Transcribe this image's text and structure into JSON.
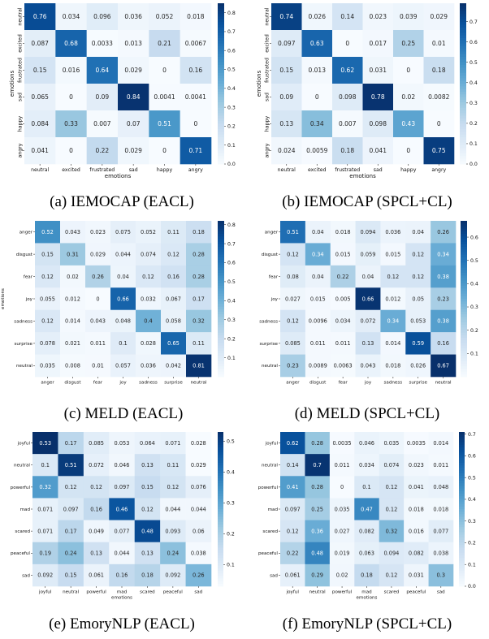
{
  "chart_data": [
    {
      "type": "heatmap",
      "caption": "(a) IEMOCAP (EACL)",
      "xlabel": "emotions",
      "ylabel": "emotions",
      "x_tick_labels": [
        "neutral",
        "excited",
        "frustrated",
        "sad",
        "happy",
        "angry"
      ],
      "y_tick_labels": [
        "neutral",
        "excited",
        "frustrated",
        "sad",
        "happy",
        "angry"
      ],
      "values": [
        [
          "0.76",
          "0.034",
          "0.096",
          "0.036",
          "0.052",
          "0.018"
        ],
        [
          "0.087",
          "0.68",
          "0.0033",
          "0.013",
          "0.21",
          "0.0067"
        ],
        [
          "0.15",
          "0.016",
          "0.64",
          "0.029",
          "0",
          "0.16"
        ],
        [
          "0.065",
          "0",
          "0.09",
          "0.84",
          "0.0041",
          "0.0041"
        ],
        [
          "0.084",
          "0.33",
          "0.007",
          "0.07",
          "0.51",
          "0"
        ],
        [
          "0.041",
          "0",
          "0.22",
          "0.029",
          "0",
          "0.71"
        ]
      ],
      "colorbar": {
        "range": [
          0,
          0.85
        ],
        "ticks": [
          "0.0",
          "0.1",
          "0.2",
          "0.3",
          "0.4",
          "0.5",
          "0.6",
          "0.7",
          "0.8"
        ]
      }
    },
    {
      "type": "heatmap",
      "caption": "(b) IEMOCAP (SPCL+CL)",
      "xlabel": "emotions",
      "ylabel": "emotions",
      "x_tick_labels": [
        "neutral",
        "excited",
        "frustrated",
        "sad",
        "happy",
        "angry"
      ],
      "y_tick_labels": [
        "neutral",
        "excited",
        "frustrated",
        "sad",
        "happy",
        "angry"
      ],
      "values": [
        [
          "0.74",
          "0.026",
          "0.14",
          "0.023",
          "0.039",
          "0.029"
        ],
        [
          "0.097",
          "0.63",
          "0",
          "0.017",
          "0.25",
          "0.01"
        ],
        [
          "0.15",
          "0.013",
          "0.62",
          "0.031",
          "0",
          "0.18"
        ],
        [
          "0.09",
          "0",
          "0.098",
          "0.78",
          "0.02",
          "0.0082"
        ],
        [
          "0.13",
          "0.34",
          "0.007",
          "0.098",
          "0.43",
          "0"
        ],
        [
          "0.024",
          "0.0059",
          "0.18",
          "0.041",
          "0",
          "0.75"
        ]
      ],
      "colorbar": {
        "range": [
          0,
          0.79
        ],
        "ticks": [
          "0.0",
          "0.1",
          "0.2",
          "0.3",
          "0.4",
          "0.5",
          "0.6",
          "0.7"
        ]
      }
    },
    {
      "type": "heatmap",
      "caption": "(c) MELD (EACL)",
      "xlabel": "",
      "ylabel": "emotions",
      "x_tick_labels": [
        "anger",
        "disgust",
        "fear",
        "joy",
        "sadness",
        "surprise",
        "neutral"
      ],
      "y_tick_labels": [
        "anger",
        "disgust",
        "fear",
        "joy",
        "sadness",
        "surprise",
        "neutral"
      ],
      "values": [
        [
          "0.52",
          "0.043",
          "0.023",
          "0.075",
          "0.052",
          "0.11",
          "0.18"
        ],
        [
          "0.15",
          "0.31",
          "0.029",
          "0.044",
          "0.074",
          "0.12",
          "0.28"
        ],
        [
          "0.12",
          "0.02",
          "0.26",
          "0.04",
          "0.12",
          "0.16",
          "0.28"
        ],
        [
          "0.055",
          "0.012",
          "0",
          "0.66",
          "0.032",
          "0.067",
          "0.17"
        ],
        [
          "0.12",
          "0.014",
          "0.043",
          "0.048",
          "0.4",
          "0.058",
          "0.32"
        ],
        [
          "0.078",
          "0.021",
          "0.011",
          "0.1",
          "0.028",
          "0.65",
          "0.11"
        ],
        [
          "0.035",
          "0.008",
          "0.01",
          "0.057",
          "0.036",
          "0.042",
          "0.81"
        ]
      ],
      "colorbar": {
        "range": [
          0,
          0.82
        ],
        "ticks": [
          "0.1",
          "0.2",
          "0.3",
          "0.4",
          "0.5",
          "0.6",
          "0.7",
          "0.8"
        ]
      }
    },
    {
      "type": "heatmap",
      "caption": "(d) MELD (SPCL+CL)",
      "xlabel": "",
      "ylabel": "",
      "x_tick_labels": [
        "anger",
        "disgust",
        "fear",
        "joy",
        "sadness",
        "surprise",
        "neutral"
      ],
      "y_tick_labels": [
        "anger",
        "disgust",
        "fear",
        "joy",
        "sadness",
        "surprise",
        "neutral"
      ],
      "values": [
        [
          "0.51",
          "0.04",
          "0.018",
          "0.094",
          "0.036",
          "0.04",
          "0.26"
        ],
        [
          "0.12",
          "0.34",
          "0.015",
          "0.059",
          "0.015",
          "0.12",
          "0.34"
        ],
        [
          "0.08",
          "0.04",
          "0.22",
          "0.04",
          "0.12",
          "0.12",
          "0.38"
        ],
        [
          "0.027",
          "0.015",
          "0.005",
          "0.66",
          "0.012",
          "0.05",
          "0.23"
        ],
        [
          "0.12",
          "0.0096",
          "0.034",
          "0.072",
          "0.34",
          "0.053",
          "0.38"
        ],
        [
          "0.085",
          "0.011",
          "0.011",
          "0.13",
          "0.014",
          "0.59",
          "0.16"
        ],
        [
          "0.23",
          "0.0089",
          "0.0063",
          "0.043",
          "0.018",
          "0.026",
          "0.67"
        ]
      ],
      "colorbar": {
        "range": [
          0,
          0.67
        ],
        "ticks": [
          "0.1",
          "0.2",
          "0.3",
          "0.4",
          "0.5",
          "0.6"
        ]
      }
    },
    {
      "type": "heatmap",
      "caption": "(e) EmoryNLP (EACL)",
      "xlabel": "emotions",
      "ylabel": "",
      "x_tick_labels": [
        "joyful",
        "neutral",
        "powerful",
        "mad",
        "scared",
        "peaceful",
        "sad"
      ],
      "y_tick_labels": [
        "joyful",
        "neutral",
        "powerful",
        "mad",
        "scared",
        "peaceful",
        "sad"
      ],
      "values": [
        [
          "0.53",
          "0.17",
          "0.085",
          "0.053",
          "0.064",
          "0.071",
          "0.028"
        ],
        [
          "0.1",
          "0.51",
          "0.072",
          "0.046",
          "0.13",
          "0.11",
          "0.029"
        ],
        [
          "0.32",
          "0.12",
          "0.12",
          "0.097",
          "0.15",
          "0.12",
          "0.076"
        ],
        [
          "0.071",
          "0.097",
          "0.16",
          "0.46",
          "0.12",
          "0.044",
          "0.044"
        ],
        [
          "0.071",
          "0.17",
          "0.049",
          "0.077",
          "0.48",
          "0.093",
          "0.06"
        ],
        [
          "0.19",
          "0.24",
          "0.13",
          "0.044",
          "0.13",
          "0.24",
          "0.038"
        ],
        [
          "0.092",
          "0.15",
          "0.061",
          "0.16",
          "0.18",
          "0.092",
          "0.26"
        ]
      ],
      "colorbar": {
        "range": [
          0.03,
          0.53
        ],
        "ticks": [
          "0.1",
          "0.2",
          "0.3",
          "0.4",
          "0.5"
        ]
      }
    },
    {
      "type": "heatmap",
      "caption": "(f) EmoryNLP (SPCL+CL)",
      "xlabel": "emotions",
      "ylabel": "",
      "x_tick_labels": [
        "joyful",
        "neutral",
        "powerful",
        "mad",
        "scared",
        "peaceful",
        "sad"
      ],
      "y_tick_labels": [
        "joyful",
        "neutral",
        "powerful",
        "mad",
        "scared",
        "peaceful",
        "sad"
      ],
      "values": [
        [
          "0.62",
          "0.28",
          "0.0035",
          "0.046",
          "0.035",
          "0.0035",
          "0.014"
        ],
        [
          "0.14",
          "0.7",
          "0.011",
          "0.034",
          "0.074",
          "0.023",
          "0.011"
        ],
        [
          "0.41",
          "0.28",
          "0",
          "0.1",
          "0.12",
          "0.041",
          "0.048"
        ],
        [
          "0.097",
          "0.25",
          "0.035",
          "0.47",
          "0.12",
          "0.018",
          "0.018"
        ],
        [
          "0.12",
          "0.36",
          "0.027",
          "0.082",
          "0.32",
          "0.016",
          "0.077"
        ],
        [
          "0.22",
          "0.48",
          "0.019",
          "0.063",
          "0.094",
          "0.082",
          "0.038"
        ],
        [
          "0.061",
          "0.29",
          "0.02",
          "0.18",
          "0.12",
          "0.031",
          "0.3"
        ]
      ],
      "colorbar": {
        "range": [
          0,
          0.71
        ],
        "ticks": [
          "0.0",
          "0.1",
          "0.2",
          "0.3",
          "0.4",
          "0.5",
          "0.6",
          "0.7"
        ]
      }
    }
  ]
}
